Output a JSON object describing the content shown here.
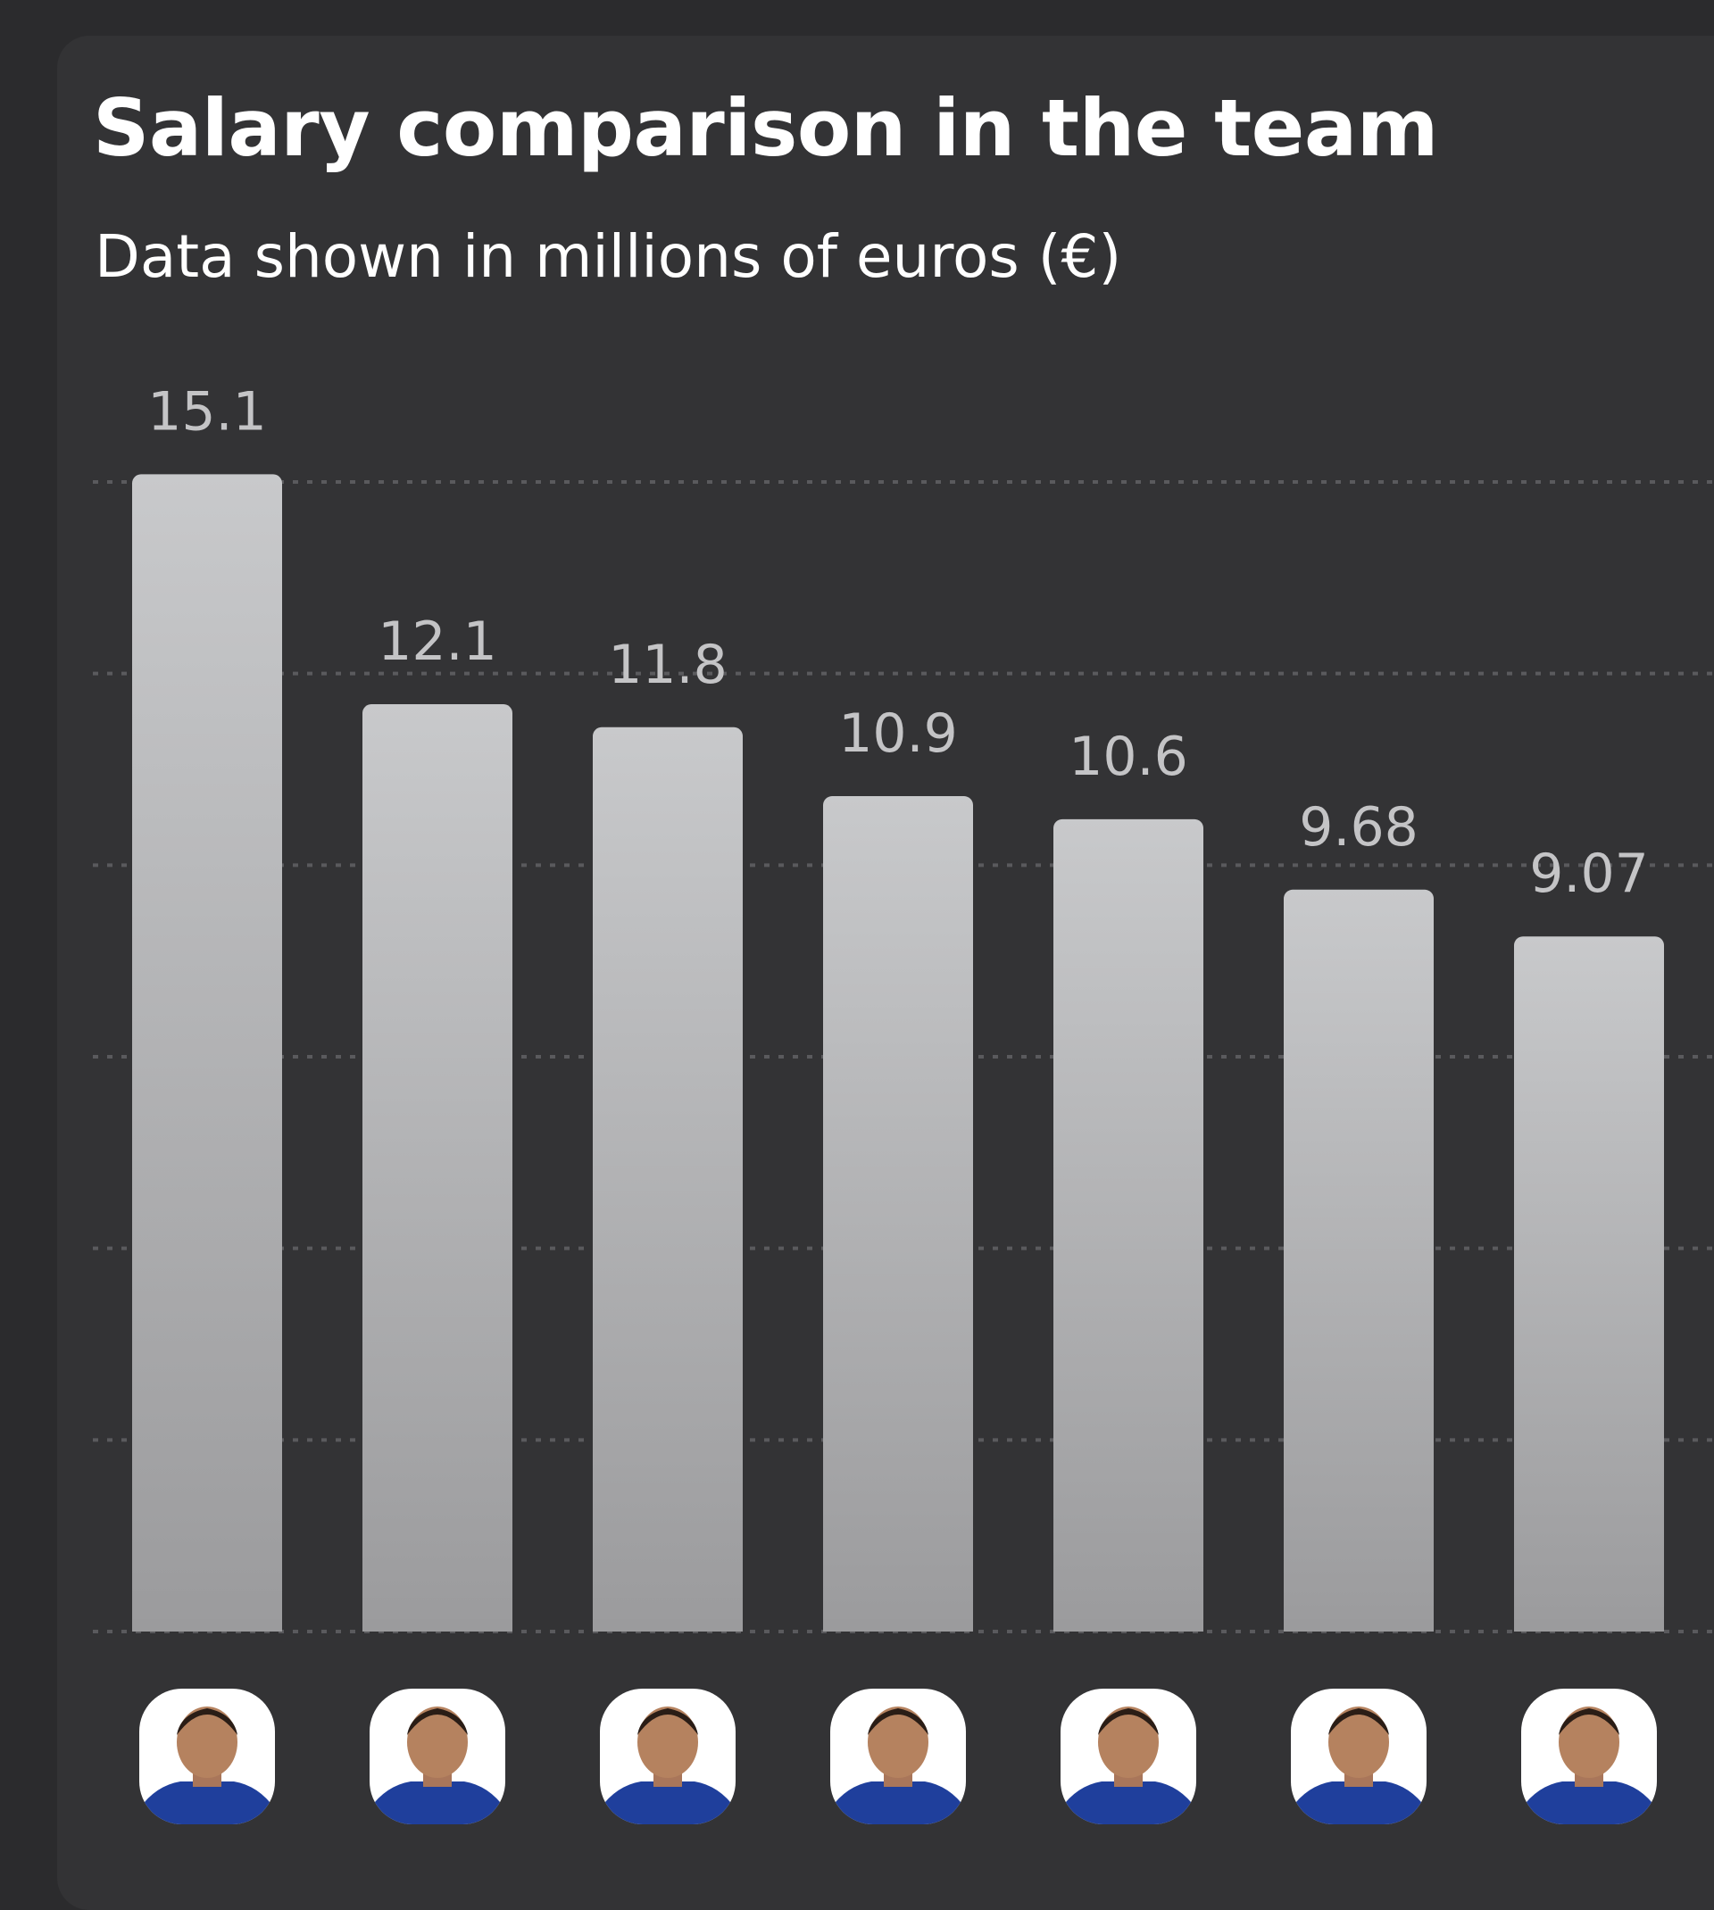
{
  "title": "Salary comparison in the team",
  "subtitle": "Data shown in millions of euros (€)",
  "chart_data": {
    "type": "bar",
    "title": "Salary comparison in the team",
    "subtitle": "Data shown in millions of euros (€)",
    "categories": [
      "",
      "",
      "",
      "",
      "",
      "",
      ""
    ],
    "values": [
      15.1,
      12.1,
      11.8,
      10.9,
      10.6,
      9.68,
      9.07
    ],
    "value_labels": [
      "15.1",
      "12.1",
      "11.8",
      "10.9",
      "10.6",
      "9.68",
      "9.07"
    ],
    "ylim": [
      0,
      15
    ],
    "grid": true,
    "x_axis_items": "player-photo-icon",
    "colors": {
      "bar_top": "#c8c9cb",
      "bar_bottom": "#9b9b9d",
      "background": "#333335",
      "page": "#2b2b2d",
      "text": "#ffffff",
      "value_text": "#c4c4c6",
      "jersey": "#1f3f9c"
    }
  }
}
